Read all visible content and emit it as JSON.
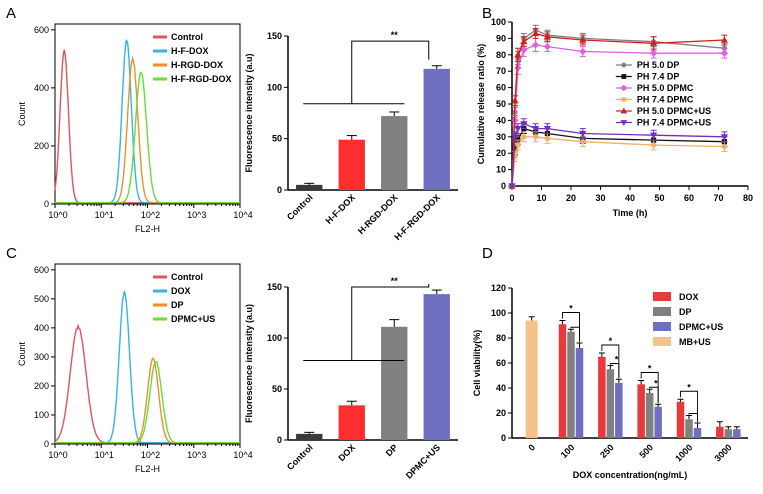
{
  "chart_data": [
    {
      "panel": "A",
      "subpanel": "left",
      "type": "histogram",
      "xlabel": "FL2-H",
      "ylabel": "Count",
      "xticks": [
        "10^0",
        "10^1",
        "10^2",
        "10^3",
        "10^4"
      ],
      "yticks": [
        0,
        200,
        400,
        600
      ],
      "ylim": [
        0,
        620
      ],
      "legend": [
        {
          "name": "Control",
          "color": "#e05555"
        },
        {
          "name": "H-F-DOX",
          "color": "#33b5e5"
        },
        {
          "name": "H-RGD-DOX",
          "color": "#e8922c"
        },
        {
          "name": "H-F-RGD-DOX",
          "color": "#6adc3a"
        }
      ],
      "peaks": [
        {
          "name": "Control",
          "center_log": 0.2,
          "width_log": 0.09,
          "height": 520
        },
        {
          "name": "H-F-DOX",
          "center_log": 1.55,
          "width_log": 0.1,
          "height": 555
        },
        {
          "name": "H-RGD-DOX",
          "center_log": 1.68,
          "width_log": 0.11,
          "height": 490
        },
        {
          "name": "H-F-RGD-DOX",
          "center_log": 1.86,
          "width_log": 0.12,
          "height": 445
        }
      ]
    },
    {
      "panel": "A",
      "subpanel": "right",
      "type": "bar",
      "ylabel": "Fluorescence intensity (a.u)",
      "ylim": [
        0,
        150
      ],
      "yticks": [
        0,
        50,
        100,
        150
      ],
      "categories": [
        "Control",
        "H-F-DOX",
        "H-RGD-DOX",
        "H-F-RGD-DOX"
      ],
      "values": [
        5,
        49,
        72,
        118
      ],
      "errors": [
        1.5,
        4,
        4,
        3
      ],
      "colors": [
        "#3a3a3a",
        "#ff2e2e",
        "#808080",
        "#6f6fc0"
      ],
      "significance": "**"
    },
    {
      "panel": "B",
      "type": "line",
      "xlabel": "Time (h)",
      "ylabel": "Cumulative release ratio (%)",
      "xlim": [
        0,
        80
      ],
      "ylim": [
        0,
        100
      ],
      "xticks": [
        0,
        10,
        20,
        30,
        40,
        50,
        60,
        70,
        80
      ],
      "yticks": [
        0,
        10,
        20,
        30,
        40,
        50,
        60,
        70,
        80,
        90,
        100
      ],
      "x": [
        0,
        1,
        2,
        4,
        8,
        12,
        24,
        48,
        72
      ],
      "series": [
        {
          "name": "PH 5.0 DP",
          "color": "#7f7f7f",
          "marker": "circle",
          "values": [
            0,
            45,
            78,
            90,
            95,
            92,
            90,
            88,
            84
          ],
          "errors": [
            0,
            3,
            4,
            3,
            3,
            3,
            3,
            3,
            3
          ]
        },
        {
          "name": "PH 7.4 DP",
          "color": "#111111",
          "marker": "square",
          "values": [
            0,
            22,
            28,
            35,
            33,
            32,
            29,
            28,
            27
          ],
          "errors": [
            0,
            3,
            3,
            3,
            3,
            3,
            3,
            3,
            3
          ]
        },
        {
          "name": "PH 5.0 DPMC",
          "color": "#e060e0",
          "marker": "diamond",
          "values": [
            0,
            40,
            72,
            83,
            86,
            85,
            82,
            81,
            81
          ],
          "errors": [
            0,
            3,
            4,
            4,
            4,
            3,
            3,
            3,
            3
          ]
        },
        {
          "name": "PH 7.4 DPMC",
          "color": "#f0b060",
          "marker": "circle",
          "values": [
            0,
            18,
            25,
            30,
            30,
            29,
            27,
            25,
            24
          ],
          "errors": [
            0,
            3,
            3,
            3,
            3,
            3,
            3,
            3,
            3
          ]
        },
        {
          "name": "PH 5.0 DPMC+US",
          "color": "#d02020",
          "marker": "triangle-up",
          "values": [
            0,
            52,
            80,
            88,
            93,
            91,
            89,
            87,
            89
          ],
          "errors": [
            0,
            3,
            4,
            3,
            3,
            3,
            3,
            4,
            3
          ]
        },
        {
          "name": "PH 7.4 DPMC+US",
          "color": "#7030c0",
          "marker": "triangle-down",
          "values": [
            0,
            30,
            35,
            38,
            35,
            35,
            32,
            31,
            30
          ],
          "errors": [
            0,
            3,
            3,
            3,
            3,
            3,
            3,
            3,
            3
          ]
        }
      ]
    },
    {
      "panel": "C",
      "subpanel": "left",
      "type": "histogram",
      "xlabel": "FL2-H",
      "ylabel": "Count",
      "xticks": [
        "10^0",
        "10^1",
        "10^2",
        "10^3",
        "10^4"
      ],
      "yticks": [
        0,
        100,
        200,
        300,
        400,
        500,
        600
      ],
      "ylim": [
        0,
        620
      ],
      "legend": [
        {
          "name": "Control",
          "color": "#e05555"
        },
        {
          "name": "DOX",
          "color": "#33b5e5"
        },
        {
          "name": "DP",
          "color": "#e8922c"
        },
        {
          "name": "DPMC+US",
          "color": "#6adc3a"
        }
      ],
      "peaks": [
        {
          "name": "Control",
          "center_log": 0.5,
          "width_log": 0.17,
          "height": 395
        },
        {
          "name": "DOX",
          "center_log": 1.5,
          "width_log": 0.11,
          "height": 515
        },
        {
          "name": "DP",
          "center_log": 2.12,
          "width_log": 0.12,
          "height": 285
        },
        {
          "name": "DPMC+US",
          "center_log": 2.18,
          "width_log": 0.13,
          "height": 275
        }
      ]
    },
    {
      "panel": "C",
      "subpanel": "right",
      "type": "bar",
      "ylabel": "Fluorescence intensity (a.u)",
      "ylim": [
        0,
        150
      ],
      "yticks": [
        0,
        50,
        100,
        150
      ],
      "categories": [
        "Control",
        "DOX",
        "DP",
        "DPMC+US"
      ],
      "values": [
        6,
        34,
        111,
        143
      ],
      "errors": [
        1.5,
        4,
        7,
        4
      ],
      "colors": [
        "#3a3a3a",
        "#ff2e2e",
        "#808080",
        "#6f6fc0"
      ],
      "significance": "**"
    },
    {
      "panel": "D",
      "type": "bar",
      "xlabel": "DOX concentration(ng/mL)",
      "ylabel": "Cell viability(%)",
      "ylim": [
        0,
        120
      ],
      "yticks": [
        0,
        20,
        40,
        60,
        80,
        100,
        120
      ],
      "categories": [
        "0",
        "100",
        "250",
        "500",
        "1000",
        "3000"
      ],
      "series": [
        {
          "name": "DOX",
          "color": "#e83a3a",
          "values": [
            null,
            91,
            65,
            43,
            29,
            9
          ],
          "errors": [
            null,
            3,
            3,
            3,
            2,
            4
          ]
        },
        {
          "name": "DP",
          "color": "#808080",
          "values": [
            null,
            85,
            55,
            36,
            15,
            7
          ],
          "errors": [
            null,
            2,
            3,
            3,
            3,
            2
          ]
        },
        {
          "name": "DPMC+US",
          "color": "#6f6fc0",
          "values": [
            null,
            72,
            44,
            25,
            8,
            7
          ],
          "errors": [
            null,
            4,
            3,
            2,
            4,
            2
          ]
        },
        {
          "name": "MB+US",
          "color": "#f5c28a",
          "values": [
            94,
            null,
            null,
            null,
            null,
            null
          ],
          "errors": [
            3,
            null,
            null,
            null,
            null,
            null
          ]
        }
      ],
      "significance": "*"
    }
  ]
}
